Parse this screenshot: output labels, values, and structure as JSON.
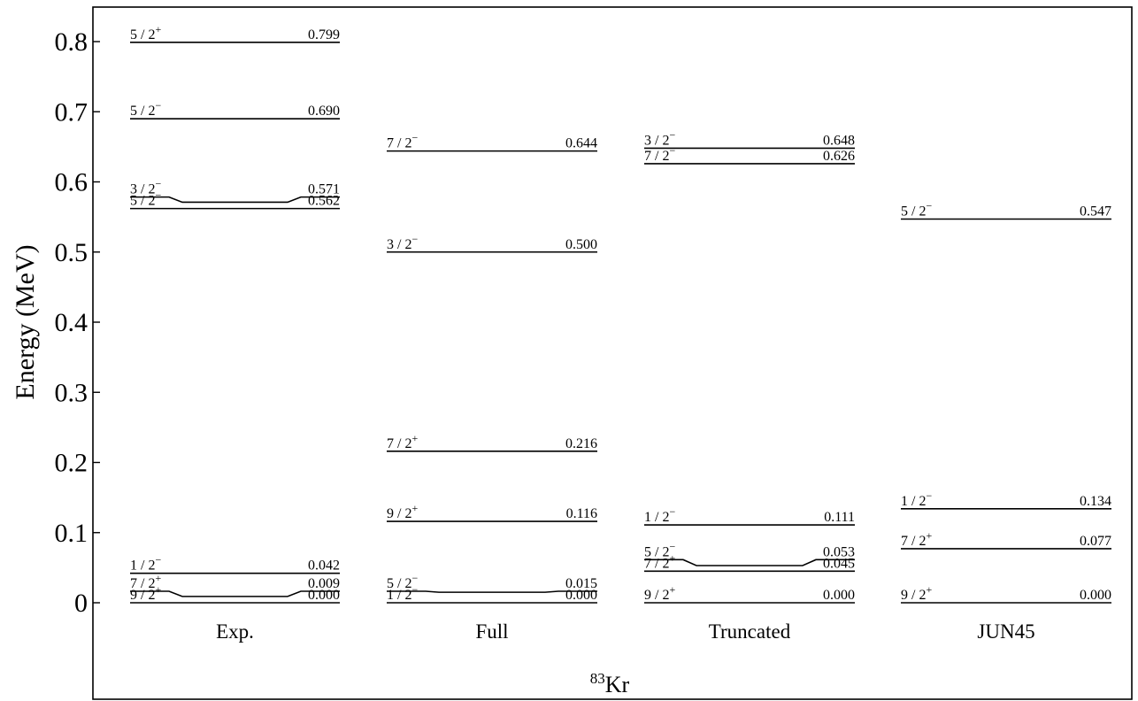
{
  "chart_data": {
    "type": "level-scheme",
    "title": "",
    "ylabel": "Energy (MeV)",
    "xlabel": {
      "mass_number": "83",
      "element": "Kr"
    },
    "ylim": [
      0,
      0.8
    ],
    "yticks": [
      {
        "value": 0.8,
        "label": "0.8"
      },
      {
        "value": 0.7,
        "label": "0.7"
      },
      {
        "value": 0.6,
        "label": "0.6"
      },
      {
        "value": 0.5,
        "label": "0.5"
      },
      {
        "value": 0.4,
        "label": "0.4"
      },
      {
        "value": 0.3,
        "label": "0.3"
      },
      {
        "value": 0.2,
        "label": "0.2"
      },
      {
        "value": 0.1,
        "label": "0.1"
      },
      {
        "value": 0,
        "label": "0"
      }
    ],
    "grid": false,
    "columns": [
      {
        "name": "Exp.",
        "levels": [
          {
            "spin": "9 / 2",
            "parity": "+",
            "energy": 0.0,
            "label": "0.000"
          },
          {
            "spin": "7 / 2",
            "parity": "+",
            "energy": 0.009,
            "label": "0.009"
          },
          {
            "spin": "1 / 2",
            "parity": "−",
            "energy": 0.042,
            "label": "0.042"
          },
          {
            "spin": "5 / 2",
            "parity": "−",
            "energy": 0.562,
            "label": "0.562"
          },
          {
            "spin": "3 / 2",
            "parity": "−",
            "energy": 0.571,
            "label": "0.571"
          },
          {
            "spin": "5 / 2",
            "parity": "−",
            "energy": 0.69,
            "label": "0.690"
          },
          {
            "spin": "5 / 2",
            "parity": "+",
            "energy": 0.799,
            "label": "0.799"
          }
        ]
      },
      {
        "name": "Full",
        "levels": [
          {
            "spin": "1 / 2",
            "parity": "−",
            "energy": 0.0,
            "label": "0.000"
          },
          {
            "spin": "5 / 2",
            "parity": "−",
            "energy": 0.015,
            "label": "0.015"
          },
          {
            "spin": "9 / 2",
            "parity": "+",
            "energy": 0.116,
            "label": "0.116"
          },
          {
            "spin": "7 / 2",
            "parity": "+",
            "energy": 0.216,
            "label": "0.216"
          },
          {
            "spin": "3 / 2",
            "parity": "−",
            "energy": 0.5,
            "label": "0.500"
          },
          {
            "spin": "7 / 2",
            "parity": "−",
            "energy": 0.644,
            "label": "0.644"
          }
        ]
      },
      {
        "name": "Truncated",
        "levels": [
          {
            "spin": "9 / 2",
            "parity": "+",
            "energy": 0.0,
            "label": "0.000"
          },
          {
            "spin": "7 / 2",
            "parity": "+",
            "energy": 0.045,
            "label": "0.045"
          },
          {
            "spin": "5 / 2",
            "parity": "−",
            "energy": 0.053,
            "label": "0.053"
          },
          {
            "spin": "1 / 2",
            "parity": "−",
            "energy": 0.111,
            "label": "0.111"
          },
          {
            "spin": "7 / 2",
            "parity": "−",
            "energy": 0.626,
            "label": "0.626"
          },
          {
            "spin": "3 / 2",
            "parity": "−",
            "energy": 0.648,
            "label": "0.648"
          }
        ]
      },
      {
        "name": "JUN45",
        "levels": [
          {
            "spin": "9 / 2",
            "parity": "+",
            "energy": 0.0,
            "label": "0.000"
          },
          {
            "spin": "7 / 2",
            "parity": "+",
            "energy": 0.077,
            "label": "0.077"
          },
          {
            "spin": "1 / 2",
            "parity": "−",
            "energy": 0.134,
            "label": "0.134"
          },
          {
            "spin": "5 / 2",
            "parity": "−",
            "energy": 0.547,
            "label": "0.547"
          }
        ]
      }
    ]
  }
}
